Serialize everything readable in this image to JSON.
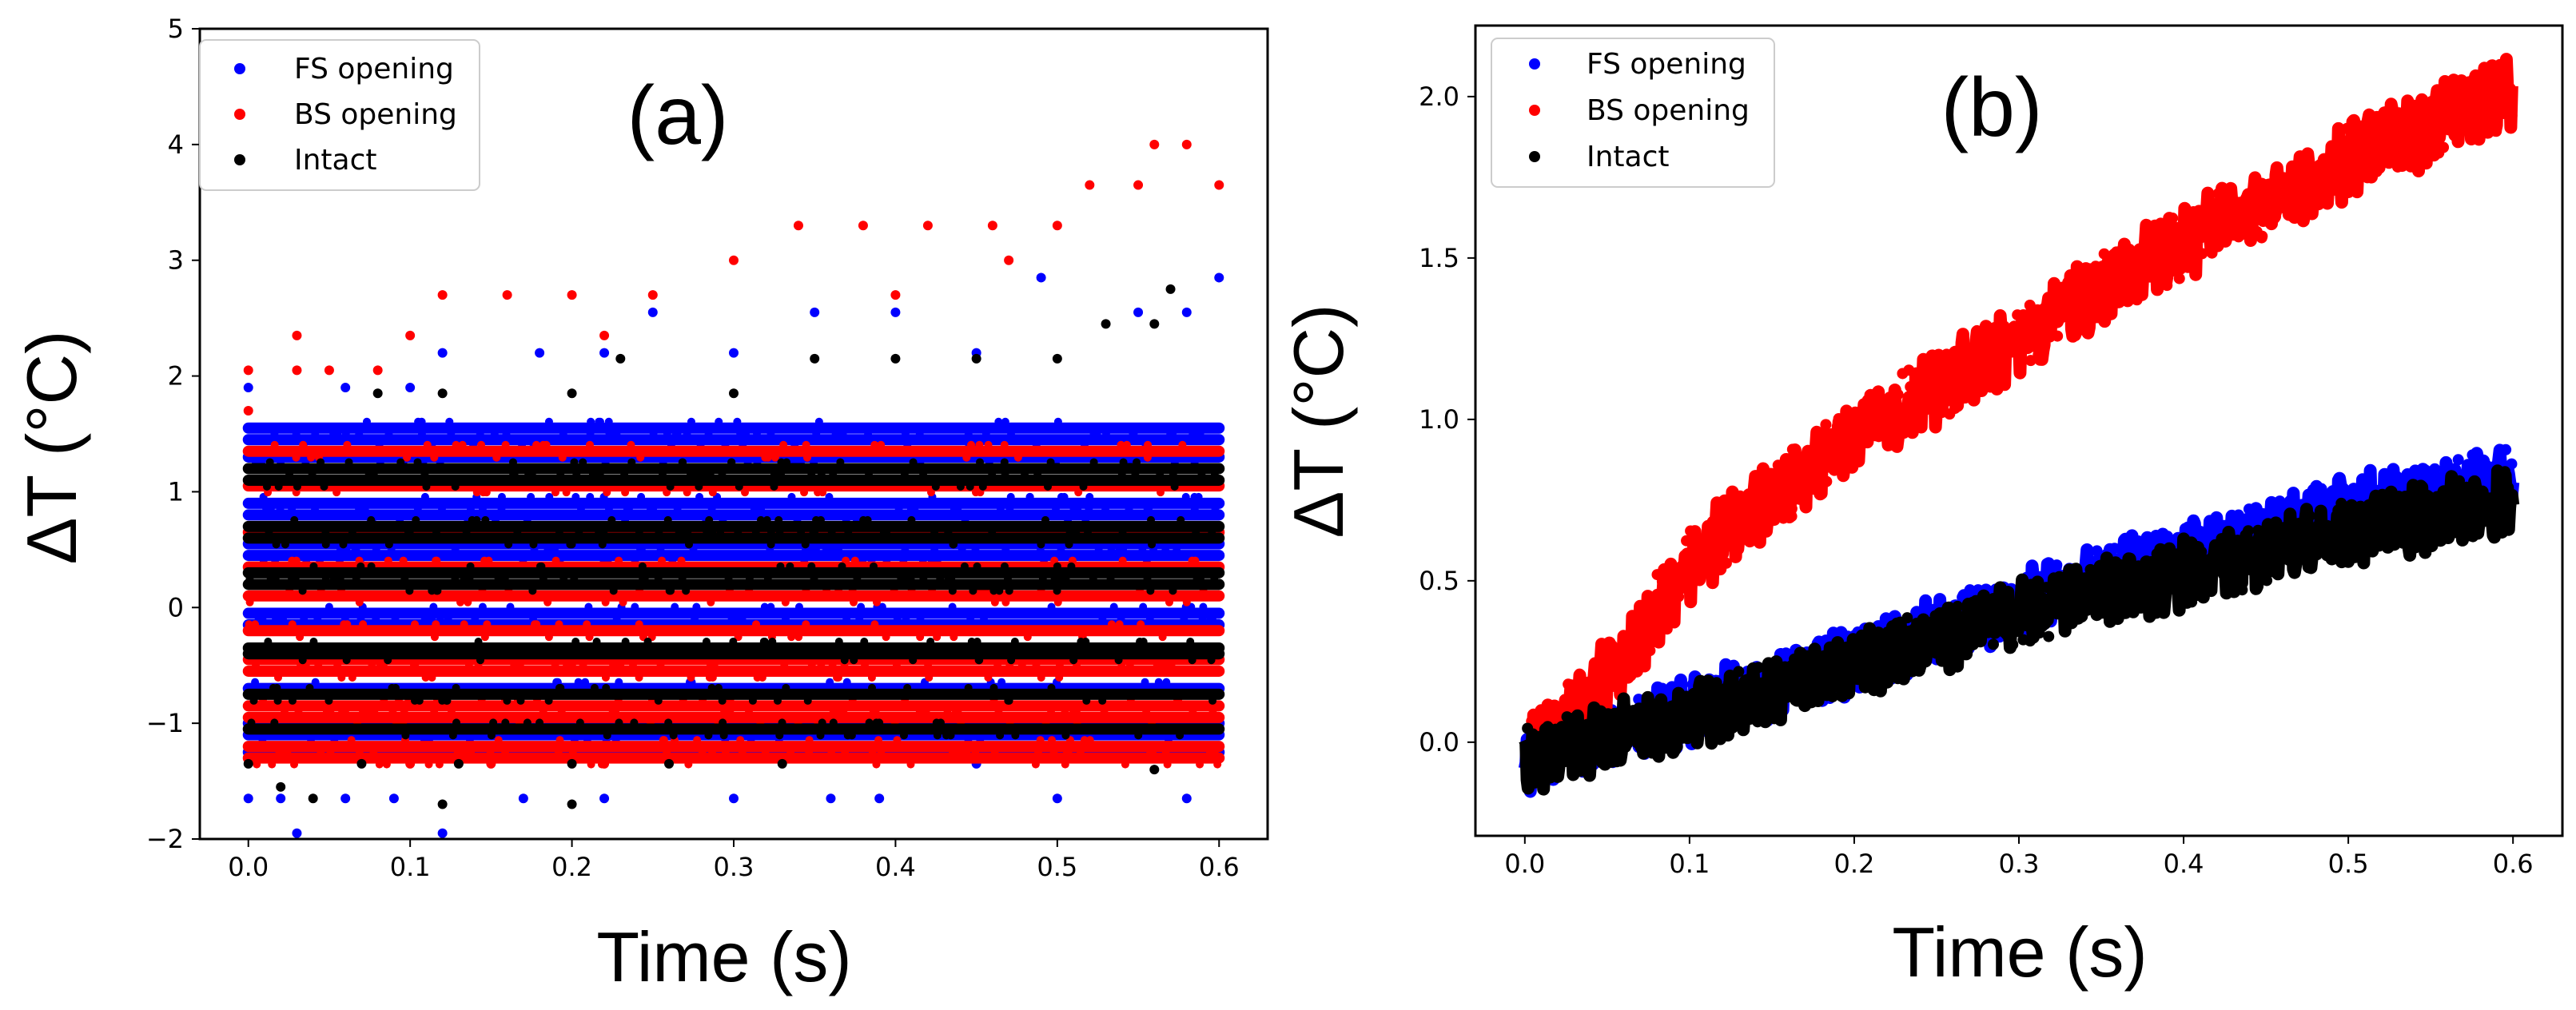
{
  "chart_data": [
    {
      "type": "scatter",
      "panel_label": "(a)",
      "title": "",
      "xlabel": "Time (s)",
      "ylabel": "ΔT (°C)",
      "xlim": [
        -0.03,
        0.63
      ],
      "ylim": [
        -2,
        5
      ],
      "xticks": [
        0.0,
        0.1,
        0.2,
        0.3,
        0.4,
        0.5,
        0.6
      ],
      "xtick_labels": [
        "0.0",
        "0.1",
        "0.2",
        "0.3",
        "0.4",
        "0.5",
        "0.6"
      ],
      "yticks": [
        -2,
        -1,
        0,
        1,
        2,
        3,
        4,
        5
      ],
      "ytick_labels": [
        "−2",
        "−1",
        "0",
        "1",
        "2",
        "3",
        "4",
        "5"
      ],
      "legend_position": "top-left",
      "grid": false,
      "series": [
        {
          "name": "FS opening",
          "color": "#0000ff",
          "dense_levels": [
            1.55,
            1.45,
            1.3,
            0.9,
            0.8,
            0.55,
            0.45,
            -0.05,
            -0.15,
            -0.7,
            -1.0,
            -1.1,
            -1.25
          ],
          "dense_x_range": [
            0.0,
            0.6
          ],
          "sparse_points": [
            {
              "x": 0.0,
              "y": 1.9
            },
            {
              "x": 0.06,
              "y": 1.9
            },
            {
              "x": 0.1,
              "y": 1.9
            },
            {
              "x": 0.12,
              "y": 2.2
            },
            {
              "x": 0.18,
              "y": 2.2
            },
            {
              "x": 0.22,
              "y": 2.2
            },
            {
              "x": 0.25,
              "y": 2.55
            },
            {
              "x": 0.3,
              "y": 2.2
            },
            {
              "x": 0.35,
              "y": 2.55
            },
            {
              "x": 0.4,
              "y": 2.55
            },
            {
              "x": 0.45,
              "y": 2.2
            },
            {
              "x": 0.49,
              "y": 2.85
            },
            {
              "x": 0.55,
              "y": 2.55
            },
            {
              "x": 0.58,
              "y": 2.55
            },
            {
              "x": 0.6,
              "y": 2.85
            },
            {
              "x": 0.0,
              "y": -1.65
            },
            {
              "x": 0.02,
              "y": -1.65
            },
            {
              "x": 0.06,
              "y": -1.65
            },
            {
              "x": 0.09,
              "y": -1.65
            },
            {
              "x": 0.12,
              "y": -1.95
            },
            {
              "x": 0.17,
              "y": -1.65
            },
            {
              "x": 0.22,
              "y": -1.65
            },
            {
              "x": 0.3,
              "y": -1.65
            },
            {
              "x": 0.36,
              "y": -1.65
            },
            {
              "x": 0.39,
              "y": -1.65
            },
            {
              "x": 0.45,
              "y": -1.35
            },
            {
              "x": 0.5,
              "y": -1.65
            },
            {
              "x": 0.58,
              "y": -1.65
            },
            {
              "x": 0.03,
              "y": -1.95
            }
          ]
        },
        {
          "name": "BS opening",
          "color": "#ff0000",
          "dense_levels": [
            1.35,
            1.05,
            0.65,
            0.35,
            0.1,
            -0.2,
            -0.45,
            -0.55,
            -0.85,
            -0.95,
            -1.2,
            -1.3
          ],
          "dense_x_range": [
            0.0,
            0.6
          ],
          "sparse_points": [
            {
              "x": 0.0,
              "y": 2.05
            },
            {
              "x": 0.0,
              "y": 1.7
            },
            {
              "x": 0.03,
              "y": 2.05
            },
            {
              "x": 0.05,
              "y": 2.05
            },
            {
              "x": 0.03,
              "y": 2.35
            },
            {
              "x": 0.08,
              "y": 2.05
            },
            {
              "x": 0.1,
              "y": 2.35
            },
            {
              "x": 0.12,
              "y": 2.7
            },
            {
              "x": 0.16,
              "y": 2.7
            },
            {
              "x": 0.2,
              "y": 2.7
            },
            {
              "x": 0.25,
              "y": 2.7
            },
            {
              "x": 0.3,
              "y": 3.0
            },
            {
              "x": 0.34,
              "y": 3.3
            },
            {
              "x": 0.38,
              "y": 3.3
            },
            {
              "x": 0.42,
              "y": 3.3
            },
            {
              "x": 0.46,
              "y": 3.3
            },
            {
              "x": 0.5,
              "y": 3.3
            },
            {
              "x": 0.52,
              "y": 3.65
            },
            {
              "x": 0.55,
              "y": 3.65
            },
            {
              "x": 0.56,
              "y": 4.0
            },
            {
              "x": 0.58,
              "y": 4.0
            },
            {
              "x": 0.6,
              "y": 3.65
            },
            {
              "x": 0.22,
              "y": 2.35
            },
            {
              "x": 0.4,
              "y": 2.7
            },
            {
              "x": 0.47,
              "y": 3.0
            },
            {
              "x": 0.1,
              "y": -1.35
            },
            {
              "x": 0.15,
              "y": -1.35
            },
            {
              "x": 0.22,
              "y": -1.35
            },
            {
              "x": 0.3,
              "y": -1.05
            },
            {
              "x": 0.05,
              "y": -1.05
            }
          ]
        },
        {
          "name": "Intact",
          "color": "#000000",
          "dense_levels": [
            1.2,
            1.1,
            0.7,
            0.6,
            0.2,
            0.3,
            -0.35,
            -0.4,
            -0.75,
            -1.05
          ],
          "dense_x_range": [
            0.0,
            0.6
          ],
          "sparse_points": [
            {
              "x": 0.08,
              "y": 1.85
            },
            {
              "x": 0.12,
              "y": 1.85
            },
            {
              "x": 0.2,
              "y": 1.85
            },
            {
              "x": 0.23,
              "y": 2.15
            },
            {
              "x": 0.3,
              "y": 1.85
            },
            {
              "x": 0.35,
              "y": 2.15
            },
            {
              "x": 0.4,
              "y": 2.15
            },
            {
              "x": 0.45,
              "y": 2.15
            },
            {
              "x": 0.5,
              "y": 2.15
            },
            {
              "x": 0.53,
              "y": 2.45
            },
            {
              "x": 0.56,
              "y": 2.45
            },
            {
              "x": 0.57,
              "y": 2.75
            },
            {
              "x": 0.0,
              "y": -1.35
            },
            {
              "x": 0.04,
              "y": -1.65
            },
            {
              "x": 0.07,
              "y": -1.35
            },
            {
              "x": 0.12,
              "y": -1.7
            },
            {
              "x": 0.13,
              "y": -1.35
            },
            {
              "x": 0.2,
              "y": -1.7
            },
            {
              "x": 0.26,
              "y": -1.35
            },
            {
              "x": 0.33,
              "y": -1.35
            },
            {
              "x": 0.56,
              "y": -1.4
            },
            {
              "x": 0.02,
              "y": -1.55
            },
            {
              "x": 0.2,
              "y": -1.35
            }
          ]
        }
      ]
    },
    {
      "type": "scatter",
      "panel_label": "(b)",
      "title": "",
      "xlabel": "Time (s)",
      "ylabel": "ΔT (°C)",
      "xlim": [
        -0.03,
        0.63
      ],
      "ylim": [
        -0.29,
        2.22
      ],
      "xticks": [
        0.0,
        0.1,
        0.2,
        0.3,
        0.4,
        0.5,
        0.6
      ],
      "xtick_labels": [
        "0.0",
        "0.1",
        "0.2",
        "0.3",
        "0.4",
        "0.5",
        "0.6"
      ],
      "yticks": [
        0.0,
        0.5,
        1.0,
        1.5,
        2.0
      ],
      "ytick_labels": [
        "0.0",
        "0.5",
        "1.0",
        "1.5",
        "2.0"
      ],
      "legend_position": "top-left",
      "grid": false,
      "series": [
        {
          "name": "FS opening",
          "color": "#0000ff",
          "trend_x": [
            0.0,
            0.1,
            0.2,
            0.3,
            0.4,
            0.5,
            0.6
          ],
          "trend_y": [
            -0.05,
            0.1,
            0.25,
            0.43,
            0.58,
            0.72,
            0.82
          ],
          "band_halfwidth": 0.08
        },
        {
          "name": "BS opening",
          "color": "#ff0000",
          "trend_x": [
            0.0,
            0.05,
            0.1,
            0.15,
            0.2,
            0.3,
            0.4,
            0.5,
            0.6
          ],
          "trend_y": [
            -0.05,
            0.2,
            0.55,
            0.75,
            0.95,
            1.25,
            1.55,
            1.8,
            2.02
          ],
          "band_halfwidth": 0.09
        },
        {
          "name": "Intact",
          "color": "#000000",
          "trend_x": [
            0.0,
            0.1,
            0.2,
            0.3,
            0.4,
            0.5,
            0.6
          ],
          "trend_y": [
            -0.05,
            0.08,
            0.24,
            0.4,
            0.52,
            0.65,
            0.75
          ],
          "band_halfwidth": 0.08
        }
      ]
    }
  ]
}
